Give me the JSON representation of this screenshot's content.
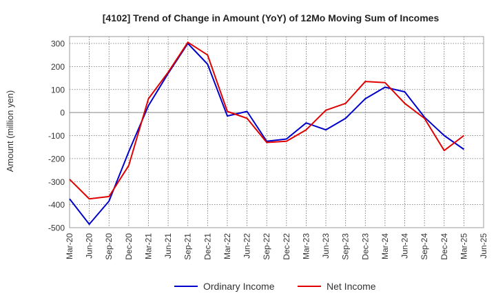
{
  "chart_data": {
    "type": "line",
    "title": "[4102]  Trend of Change in Amount (YoY) of 12Mo Moving Sum of Incomes",
    "ylabel": "Amount (million yen)",
    "xlabel": "",
    "ylim": [
      -500,
      330
    ],
    "yticks": [
      300,
      200,
      100,
      0,
      -100,
      -200,
      -300,
      -400,
      -500
    ],
    "grid": true,
    "legend_position": "bottom",
    "categories": [
      "Mar-20",
      "Jun-20",
      "Sep-20",
      "Dec-20",
      "Mar-21",
      "Jun-21",
      "Sep-21",
      "Dec-21",
      "Mar-22",
      "Jun-22",
      "Sep-22",
      "Dec-22",
      "Mar-23",
      "Jun-23",
      "Sep-23",
      "Dec-23",
      "Mar-24",
      "Jun-24",
      "Sep-24",
      "Dec-24",
      "Mar-25",
      "Jun-25"
    ],
    "series": [
      {
        "name": "Ordinary Income",
        "color": "#0000cc",
        "values": [
          -375,
          -485,
          -385,
          -170,
          30,
          170,
          300,
          210,
          -15,
          5,
          -125,
          -115,
          -45,
          -75,
          -25,
          60,
          110,
          90,
          -20,
          -100,
          -160,
          null
        ]
      },
      {
        "name": "Net Income",
        "color": "#e00000",
        "values": [
          -290,
          -375,
          -365,
          -230,
          60,
          175,
          305,
          250,
          5,
          -25,
          -130,
          -125,
          -75,
          10,
          40,
          135,
          130,
          40,
          -25,
          -165,
          -100,
          null
        ]
      }
    ]
  }
}
